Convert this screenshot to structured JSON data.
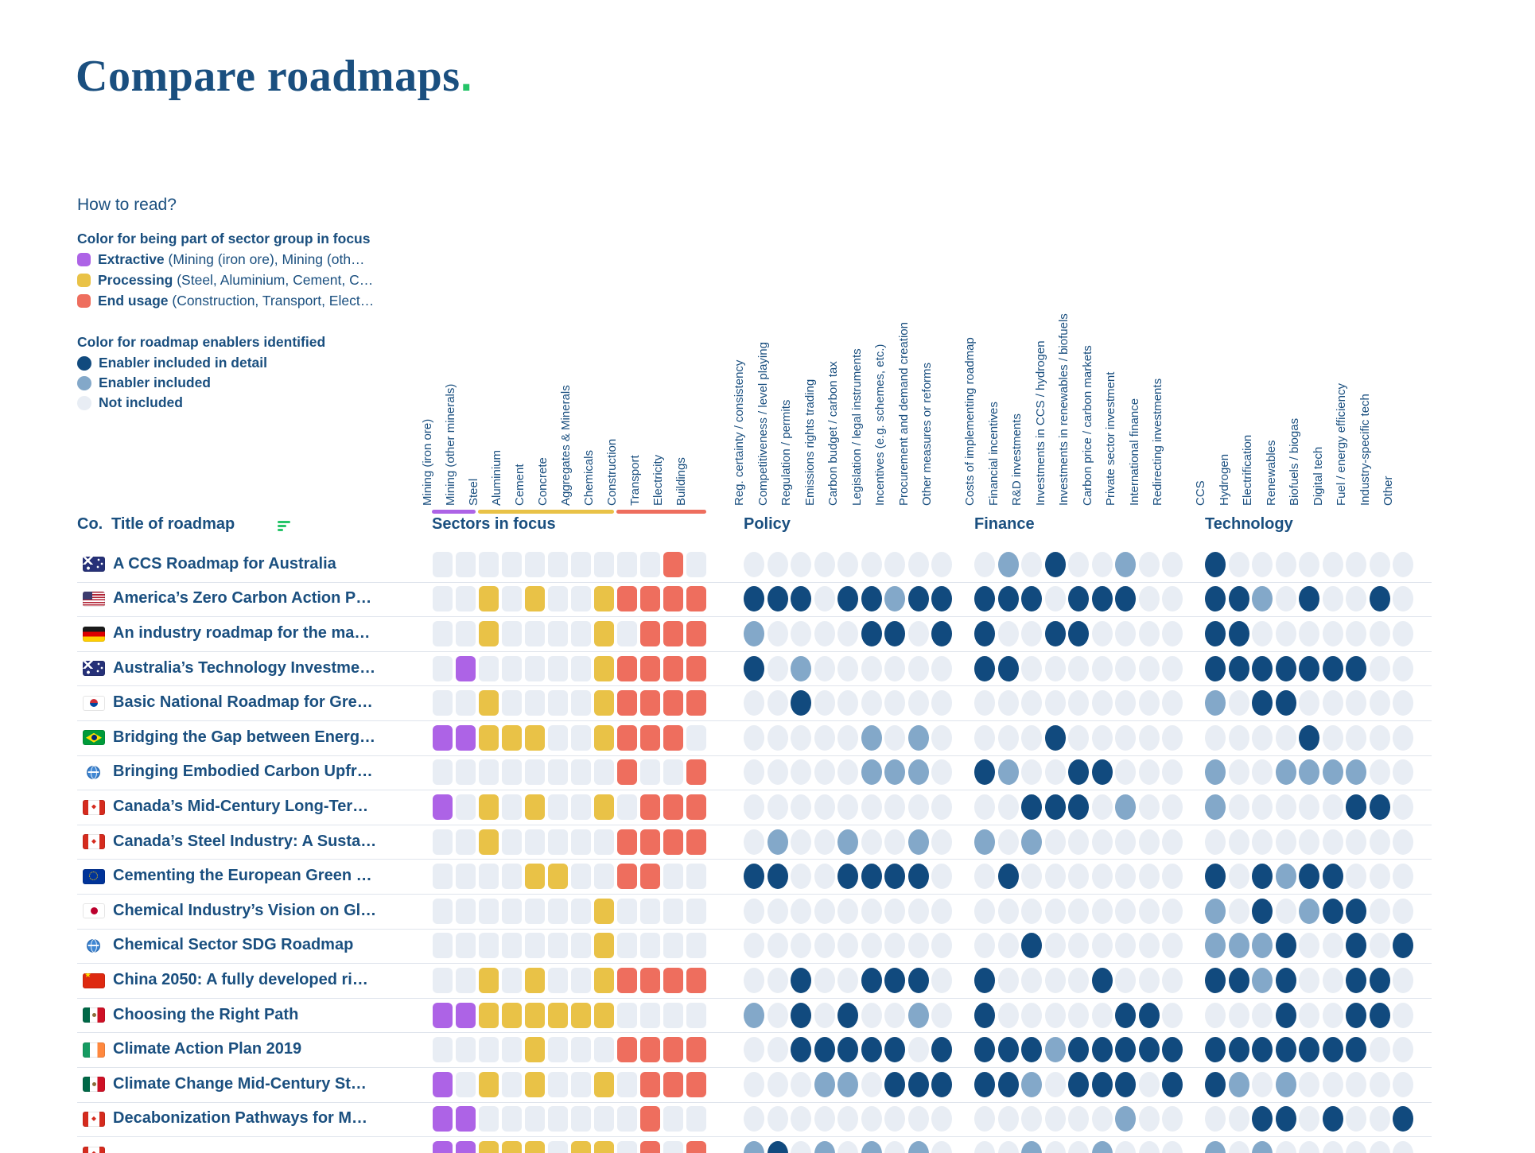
{
  "title": {
    "text": "Compare roadmaps",
    "period": "."
  },
  "how_to_read": "How to read?",
  "sector_legend": {
    "heading": "Color for being part of sector group in focus",
    "items": [
      {
        "name": "Extractive",
        "desc": " (Mining (iron ore), Mining (oth…",
        "color_key": "extractive"
      },
      {
        "name": "Processing",
        "desc": " (Steel, Aluminium, Cement, C…",
        "color_key": "processing"
      },
      {
        "name": "End usage",
        "desc": " (Construction, Transport, Elect…",
        "color_key": "end_usage"
      }
    ]
  },
  "enabler_legend": {
    "heading": "Color for roadmap enablers identified",
    "items": [
      {
        "label": "Enabler included in detail",
        "color_key": "enabler_detail"
      },
      {
        "label": "Enabler included",
        "color_key": "enabler_included"
      },
      {
        "label": "Not included",
        "color_key": "not_included"
      }
    ]
  },
  "colors": {
    "navy": "#1a4f7f",
    "green": "#25c468",
    "extractive": "#ad63e6",
    "processing": "#e9c247",
    "end_usage": "#ee6e5e",
    "enabler_detail": "#114a7e",
    "enabler_included": "#83a8c9",
    "not_included": "#e8edf4"
  },
  "encoding": {
    "sectors": {
      "0": "none",
      "1": "extractive",
      "2": "processing",
      "3": "end_usage"
    },
    "enablers": {
      "0": "not_included",
      "1": "included",
      "2": "included_in_detail"
    }
  },
  "table": {
    "co_label": "Co.",
    "title_label": "Title of roadmap",
    "groups": [
      {
        "id": "sectors",
        "label": "Sectors in focus",
        "columns": [
          "Mining (iron ore)",
          "Mining (other minerals)",
          "Steel",
          "Aluminium",
          "Cement",
          "Concrete",
          "Aggregates & Minerals",
          "Chemicals",
          "Construction",
          "Transport",
          "Electricity",
          "Buildings"
        ]
      },
      {
        "id": "policy",
        "label": "Policy",
        "columns": [
          "Reg. certainty / consistency",
          "Competitiveness / level playing",
          "Regulation / permits",
          "Emissions rights trading",
          "Carbon budget / carbon tax",
          "Legislation / legal instruments",
          "Incentives (e.g. schemes, etc.)",
          "Procurement and demand creation",
          "Other measures or reforms"
        ]
      },
      {
        "id": "finance",
        "label": "Finance",
        "columns": [
          "Costs of implementing roadmap",
          "Financial incentives",
          "R&D investments",
          "Investments in CCS / hydrogen",
          "Investments in renewables / biofuels",
          "Carbon price / carbon markets",
          "Private sector investment",
          "International finance",
          "Redirecting investments"
        ]
      },
      {
        "id": "technology",
        "label": "Technology",
        "columns": [
          "CCS",
          "Hydrogen",
          "Electrification",
          "Renewables",
          "Biofuels / biogas",
          "Digital tech",
          "Fuel / energy efficiency",
          "Industry-specific tech",
          "Other"
        ]
      }
    ],
    "sector_underline": [
      {
        "color_key": "extractive",
        "from": 0,
        "to": 2
      },
      {
        "color_key": "processing",
        "from": 2,
        "to": 8
      },
      {
        "color_key": "end_usage",
        "from": 8,
        "to": 12
      }
    ],
    "rows": [
      {
        "flag": "AU",
        "title": "A CCS Roadmap for Australia",
        "sectors": [
          0,
          0,
          0,
          0,
          0,
          0,
          0,
          0,
          0,
          0,
          3,
          0
        ],
        "policy": [
          0,
          0,
          0,
          0,
          0,
          0,
          0,
          0,
          0
        ],
        "finance": [
          0,
          1,
          0,
          2,
          0,
          0,
          1,
          0,
          0
        ],
        "technology": [
          2,
          0,
          0,
          0,
          0,
          0,
          0,
          0,
          0
        ]
      },
      {
        "flag": "US",
        "title": "America’s Zero Carbon Action P…",
        "sectors": [
          0,
          0,
          2,
          0,
          2,
          0,
          0,
          2,
          3,
          3,
          3,
          3
        ],
        "policy": [
          2,
          2,
          2,
          0,
          2,
          2,
          1,
          2,
          2
        ],
        "finance": [
          2,
          2,
          2,
          0,
          2,
          2,
          2,
          0,
          0
        ],
        "technology": [
          2,
          2,
          1,
          0,
          2,
          0,
          0,
          2,
          0
        ]
      },
      {
        "flag": "DE",
        "title": "An industry roadmap for the ma…",
        "sectors": [
          0,
          0,
          2,
          0,
          0,
          0,
          0,
          2,
          0,
          3,
          3,
          3
        ],
        "policy": [
          1,
          0,
          0,
          0,
          0,
          2,
          2,
          0,
          2
        ],
        "finance": [
          2,
          0,
          0,
          2,
          2,
          0,
          0,
          0,
          0
        ],
        "technology": [
          2,
          2,
          0,
          0,
          0,
          0,
          0,
          0,
          0
        ]
      },
      {
        "flag": "AU",
        "title": "Australia’s Technology Investme…",
        "sectors": [
          0,
          1,
          0,
          0,
          0,
          0,
          0,
          2,
          3,
          3,
          3,
          3
        ],
        "policy": [
          2,
          0,
          1,
          0,
          0,
          0,
          0,
          0,
          0
        ],
        "finance": [
          2,
          2,
          0,
          0,
          0,
          0,
          0,
          0,
          0
        ],
        "technology": [
          2,
          2,
          2,
          2,
          2,
          2,
          2,
          0,
          0
        ]
      },
      {
        "flag": "KR",
        "title": "Basic National Roadmap for Gre…",
        "sectors": [
          0,
          0,
          2,
          0,
          0,
          0,
          0,
          2,
          3,
          3,
          3,
          3
        ],
        "policy": [
          0,
          0,
          2,
          0,
          0,
          0,
          0,
          0,
          0
        ],
        "finance": [
          0,
          0,
          0,
          0,
          0,
          0,
          0,
          0,
          0
        ],
        "technology": [
          1,
          0,
          2,
          2,
          0,
          0,
          0,
          0,
          0
        ]
      },
      {
        "flag": "BR",
        "title": "Bridging the Gap between Energ…",
        "sectors": [
          1,
          1,
          2,
          2,
          2,
          0,
          0,
          2,
          3,
          3,
          3,
          0
        ],
        "policy": [
          0,
          0,
          0,
          0,
          0,
          1,
          0,
          1,
          0
        ],
        "finance": [
          0,
          0,
          0,
          2,
          0,
          0,
          0,
          0,
          0
        ],
        "technology": [
          0,
          0,
          0,
          0,
          2,
          0,
          0,
          0,
          0
        ]
      },
      {
        "flag": "GLOBE",
        "title": "Bringing Embodied Carbon Upfr…",
        "sectors": [
          0,
          0,
          0,
          0,
          0,
          0,
          0,
          0,
          3,
          0,
          0,
          3
        ],
        "policy": [
          0,
          0,
          0,
          0,
          0,
          1,
          1,
          1,
          0
        ],
        "finance": [
          2,
          1,
          0,
          0,
          2,
          2,
          0,
          0,
          0
        ],
        "technology": [
          1,
          0,
          0,
          1,
          1,
          1,
          1,
          0,
          0
        ]
      },
      {
        "flag": "CA",
        "title": "Canada’s Mid-Century Long-Ter…",
        "sectors": [
          1,
          0,
          2,
          0,
          2,
          0,
          0,
          2,
          0,
          3,
          3,
          3
        ],
        "policy": [
          0,
          0,
          0,
          0,
          0,
          0,
          0,
          0,
          0
        ],
        "finance": [
          0,
          0,
          2,
          2,
          2,
          0,
          1,
          0,
          0
        ],
        "technology": [
          1,
          0,
          0,
          0,
          0,
          0,
          2,
          2,
          0
        ]
      },
      {
        "flag": "CA",
        "title": "Canada’s Steel Industry: A Susta…",
        "sectors": [
          0,
          0,
          2,
          0,
          0,
          0,
          0,
          0,
          3,
          3,
          3,
          3
        ],
        "policy": [
          0,
          1,
          0,
          0,
          1,
          0,
          0,
          1,
          0
        ],
        "finance": [
          1,
          0,
          1,
          0,
          0,
          0,
          0,
          0,
          0
        ],
        "technology": [
          0,
          0,
          0,
          0,
          0,
          0,
          0,
          0,
          0
        ]
      },
      {
        "flag": "EU",
        "title": "Cementing the European Green …",
        "sectors": [
          0,
          0,
          0,
          0,
          2,
          2,
          0,
          0,
          3,
          3,
          0,
          0
        ],
        "policy": [
          2,
          2,
          0,
          0,
          2,
          2,
          2,
          2,
          0
        ],
        "finance": [
          0,
          2,
          0,
          0,
          0,
          0,
          0,
          0,
          0
        ],
        "technology": [
          2,
          0,
          2,
          1,
          2,
          2,
          0,
          0,
          0
        ]
      },
      {
        "flag": "JP",
        "title": "Chemical Industry’s Vision on Gl…",
        "sectors": [
          0,
          0,
          0,
          0,
          0,
          0,
          0,
          2,
          0,
          0,
          0,
          0
        ],
        "policy": [
          0,
          0,
          0,
          0,
          0,
          0,
          0,
          0,
          0
        ],
        "finance": [
          0,
          0,
          0,
          0,
          0,
          0,
          0,
          0,
          0
        ],
        "technology": [
          1,
          0,
          2,
          0,
          1,
          2,
          2,
          0,
          0
        ]
      },
      {
        "flag": "GLOBE",
        "title": "Chemical Sector SDG Roadmap",
        "sectors": [
          0,
          0,
          0,
          0,
          0,
          0,
          0,
          2,
          0,
          0,
          0,
          0
        ],
        "policy": [
          0,
          0,
          0,
          0,
          0,
          0,
          0,
          0,
          0
        ],
        "finance": [
          0,
          0,
          2,
          0,
          0,
          0,
          0,
          0,
          0
        ],
        "technology": [
          1,
          1,
          1,
          2,
          0,
          0,
          2,
          0,
          2
        ]
      },
      {
        "flag": "CN",
        "title": "China 2050: A fully developed ri…",
        "sectors": [
          0,
          0,
          2,
          0,
          2,
          0,
          0,
          2,
          3,
          3,
          3,
          3
        ],
        "policy": [
          0,
          0,
          2,
          0,
          0,
          2,
          2,
          2,
          0
        ],
        "finance": [
          2,
          0,
          0,
          0,
          0,
          2,
          0,
          0,
          0
        ],
        "technology": [
          2,
          2,
          1,
          2,
          0,
          0,
          2,
          2,
          0
        ]
      },
      {
        "flag": "MX",
        "title": "Choosing the Right Path",
        "sectors": [
          1,
          1,
          2,
          2,
          2,
          2,
          2,
          2,
          0,
          0,
          0,
          0
        ],
        "policy": [
          1,
          0,
          2,
          0,
          2,
          0,
          0,
          1,
          0
        ],
        "finance": [
          2,
          0,
          0,
          0,
          0,
          0,
          2,
          2,
          0
        ],
        "technology": [
          0,
          0,
          0,
          2,
          0,
          0,
          2,
          2,
          0
        ]
      },
      {
        "flag": "IE",
        "title": "Climate Action Plan 2019",
        "sectors": [
          0,
          0,
          0,
          0,
          2,
          0,
          0,
          0,
          3,
          3,
          3,
          3
        ],
        "policy": [
          0,
          0,
          2,
          2,
          2,
          2,
          2,
          0,
          2
        ],
        "finance": [
          2,
          2,
          2,
          1,
          2,
          2,
          2,
          2,
          2
        ],
        "technology": [
          2,
          2,
          2,
          2,
          2,
          2,
          2,
          0,
          0
        ]
      },
      {
        "flag": "MX",
        "title": "Climate Change Mid-Century St…",
        "sectors": [
          1,
          0,
          2,
          0,
          2,
          0,
          0,
          2,
          0,
          3,
          3,
          3
        ],
        "policy": [
          0,
          0,
          0,
          1,
          1,
          0,
          2,
          2,
          2
        ],
        "finance": [
          2,
          2,
          1,
          0,
          2,
          2,
          2,
          0,
          2
        ],
        "technology": [
          2,
          1,
          0,
          1,
          0,
          0,
          0,
          0,
          0
        ]
      },
      {
        "flag": "CA",
        "title": "Decabonization Pathways for M…",
        "sectors": [
          1,
          1,
          0,
          0,
          0,
          0,
          0,
          0,
          0,
          3,
          0,
          0
        ],
        "policy": [
          0,
          0,
          0,
          0,
          0,
          0,
          0,
          0,
          0
        ],
        "finance": [
          0,
          0,
          0,
          0,
          0,
          0,
          1,
          0,
          0
        ],
        "technology": [
          0,
          0,
          2,
          2,
          0,
          2,
          0,
          0,
          2
        ]
      },
      {
        "flag": "CA",
        "title": "",
        "sectors": [
          1,
          1,
          2,
          2,
          2,
          0,
          2,
          2,
          0,
          3,
          0,
          3
        ],
        "policy": [
          1,
          2,
          0,
          1,
          0,
          1,
          0,
          1,
          0
        ],
        "finance": [
          0,
          0,
          1,
          0,
          0,
          1,
          0,
          0,
          0
        ],
        "technology": [
          1,
          0,
          1,
          0,
          0,
          0,
          0,
          0,
          0
        ]
      }
    ]
  }
}
